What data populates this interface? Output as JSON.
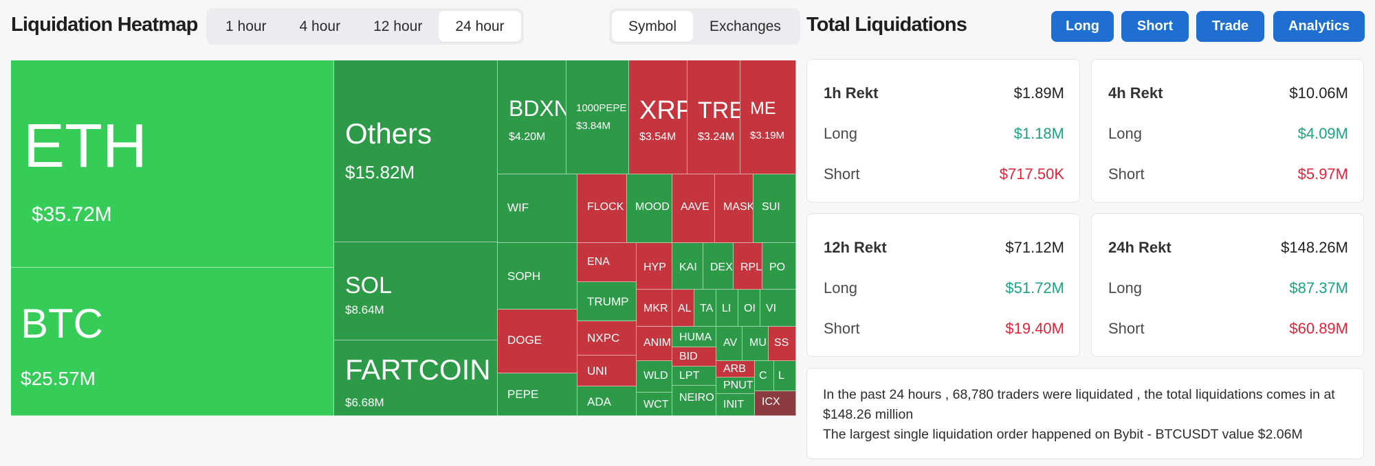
{
  "heatmap": {
    "title": "Liquidation Heatmap",
    "timeframes": [
      "1 hour",
      "4 hour",
      "12 hour",
      "24 hour"
    ],
    "active_timeframe": "24 hour",
    "view_modes": [
      "Symbol",
      "Exchanges"
    ],
    "active_view_mode": "Symbol",
    "tiles": [
      {
        "symbol": "ETH",
        "value": "$35.72M",
        "color": "#35cd58"
      },
      {
        "symbol": "BTC",
        "value": "$25.57M",
        "color": "#35cd58"
      },
      {
        "symbol": "Others",
        "value": "$15.82M",
        "color": "#2d9a48"
      },
      {
        "symbol": "SOL",
        "value": "$8.64M",
        "color": "#2d9a48"
      },
      {
        "symbol": "FARTCOIN",
        "value": "$6.68M",
        "color": "#2d9a48"
      },
      {
        "symbol": "BDXN",
        "value": "$4.20M",
        "color": "#2d9a48"
      },
      {
        "symbol": "1000PEPE",
        "value": "$3.84M",
        "color": "#2d9a48"
      },
      {
        "symbol": "XRP",
        "value": "$3.54M",
        "color": "#c4353e"
      },
      {
        "symbol": "TRE",
        "value": "$3.24M",
        "color": "#c4353e"
      },
      {
        "symbol": "ME",
        "value": "$3.19M",
        "color": "#c4353e"
      },
      {
        "symbol": "WIF",
        "value": "",
        "color": "#2d9a48"
      },
      {
        "symbol": "FLOCK",
        "value": "",
        "color": "#c4353e"
      },
      {
        "symbol": "MOOD",
        "value": "",
        "color": "#2d9a48"
      },
      {
        "symbol": "AAVE",
        "value": "",
        "color": "#c4353e"
      },
      {
        "symbol": "MASK",
        "value": "",
        "color": "#c4353e"
      },
      {
        "symbol": "SUI",
        "value": "",
        "color": "#2d9a48"
      },
      {
        "symbol": "SOPH",
        "value": "",
        "color": "#2d9a48"
      },
      {
        "symbol": "ENA",
        "value": "",
        "color": "#c4353e"
      },
      {
        "symbol": "HYP",
        "value": "",
        "color": "#c4353e"
      },
      {
        "symbol": "KAI",
        "value": "",
        "color": "#2d9a48"
      },
      {
        "symbol": "DEX",
        "value": "",
        "color": "#2d9a48"
      },
      {
        "symbol": "RPL",
        "value": "",
        "color": "#c4353e"
      },
      {
        "symbol": "PO",
        "value": "",
        "color": "#2d9a48"
      },
      {
        "symbol": "TRUMP",
        "value": "",
        "color": "#2d9a48"
      },
      {
        "symbol": "MKR",
        "value": "",
        "color": "#c4353e"
      },
      {
        "symbol": "AL",
        "value": "",
        "color": "#c4353e"
      },
      {
        "symbol": "TA",
        "value": "",
        "color": "#2d9a48"
      },
      {
        "symbol": "LI",
        "value": "",
        "color": "#2d9a48"
      },
      {
        "symbol": "OI",
        "value": "",
        "color": "#2d9a48"
      },
      {
        "symbol": "VI",
        "value": "",
        "color": "#2d9a48"
      },
      {
        "symbol": "DOGE",
        "value": "",
        "color": "#c4353e"
      },
      {
        "symbol": "NXPC",
        "value": "",
        "color": "#c4353e"
      },
      {
        "symbol": "ANIM",
        "value": "",
        "color": "#c4353e"
      },
      {
        "symbol": "HUMA",
        "value": "",
        "color": "#2d9a48"
      },
      {
        "symbol": "AV",
        "value": "",
        "color": "#2d9a48"
      },
      {
        "symbol": "MU",
        "value": "",
        "color": "#2d9a48"
      },
      {
        "symbol": "SS",
        "value": "",
        "color": "#c4353e"
      },
      {
        "symbol": "UNI",
        "value": "",
        "color": "#c4353e"
      },
      {
        "symbol": "WLD",
        "value": "",
        "color": "#2d9a48"
      },
      {
        "symbol": "BID",
        "value": "",
        "color": "#c4353e"
      },
      {
        "symbol": "ARB",
        "value": "",
        "color": "#c4353e"
      },
      {
        "symbol": "C",
        "value": "",
        "color": "#2d9a48"
      },
      {
        "symbol": "L",
        "value": "",
        "color": "#2d9a48"
      },
      {
        "symbol": "PEPE",
        "value": "",
        "color": "#2d9a48"
      },
      {
        "symbol": "ADA",
        "value": "",
        "color": "#2d9a48"
      },
      {
        "symbol": "WCT",
        "value": "",
        "color": "#2d9a48"
      },
      {
        "symbol": "LPT",
        "value": "",
        "color": "#2d9a48"
      },
      {
        "symbol": "PNUT",
        "value": "",
        "color": "#2d9a48"
      },
      {
        "symbol": "NEIRO",
        "value": "",
        "color": "#2d9a48"
      },
      {
        "symbol": "INIT",
        "value": "",
        "color": "#2d9a48"
      },
      {
        "symbol": "ICX",
        "value": "",
        "color": "#8c3b40"
      }
    ]
  },
  "totals": {
    "title": "Total Liquidations",
    "buttons": [
      "Long",
      "Short",
      "Trade",
      "Analytics"
    ],
    "cards": [
      {
        "label": "1h Rekt",
        "total": "$1.89M",
        "long_label": "Long",
        "long": "$1.18M",
        "short_label": "Short",
        "short": "$717.50K"
      },
      {
        "label": "4h Rekt",
        "total": "$10.06M",
        "long_label": "Long",
        "long": "$4.09M",
        "short_label": "Short",
        "short": "$5.97M"
      },
      {
        "label": "12h Rekt",
        "total": "$71.12M",
        "long_label": "Long",
        "long": "$51.72M",
        "short_label": "Short",
        "short": "$19.40M"
      },
      {
        "label": "24h Rekt",
        "total": "$148.26M",
        "long_label": "Long",
        "long": "$87.37M",
        "short_label": "Short",
        "short": "$60.89M"
      }
    ],
    "summary_line1": "In the past 24 hours , 68,780 traders were liquidated , the total liquidations comes in at $148.26 million",
    "summary_line2": "The largest single liquidation order happened on Bybit - BTCUSDT value $2.06M"
  },
  "colors": {
    "bright_green": "#35cd58",
    "green": "#2d9a48",
    "red": "#c4353e",
    "dark_red": "#8c3b40",
    "accent_blue": "#1e6fd0",
    "long_text": "#1aa283",
    "short_text": "#e2233a"
  }
}
